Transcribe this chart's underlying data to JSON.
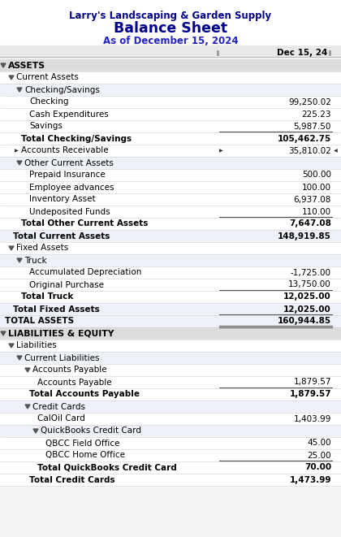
{
  "title1": "Larry's Landscaping & Garden Supply",
  "title2": "Balance Sheet",
  "title3": "As of December 15, 2024",
  "col_header": "Dec 15, 24",
  "fig_bg": "#f4f4f4",
  "white_bg": "#ffffff",
  "section_bg": "#dcdcdc",
  "alt_bg": "#eef2f8",
  "rows": [
    {
      "label": "ASSETS",
      "value": null,
      "indent": 0,
      "bold": true,
      "section_header": true,
      "arrow": "down",
      "bg": "section"
    },
    {
      "label": "Current Assets",
      "value": null,
      "indent": 1,
      "bold": false,
      "section_header": false,
      "arrow": "down",
      "bg": "white"
    },
    {
      "label": "Checking/Savings",
      "value": null,
      "indent": 2,
      "bold": false,
      "section_header": false,
      "arrow": "down",
      "bg": "alt"
    },
    {
      "label": "Checking",
      "value": "99,250.02",
      "indent": 3,
      "bold": false,
      "bg": "white"
    },
    {
      "label": "Cash Expenditures",
      "value": "225.23",
      "indent": 3,
      "bold": false,
      "bg": "white"
    },
    {
      "label": "Savings",
      "value": "5,987.50",
      "indent": 3,
      "bold": false,
      "underline_val": true,
      "bg": "white"
    },
    {
      "label": "Total Checking/Savings",
      "value": "105,462.75",
      "indent": 2,
      "bold": true,
      "bg": "white"
    },
    {
      "label": "Accounts Receivable",
      "value": "35,810.02",
      "indent": 2,
      "bold": false,
      "arrow_label": true,
      "arrow_val": true,
      "bg": "white"
    },
    {
      "label": "Other Current Assets",
      "value": null,
      "indent": 2,
      "bold": false,
      "arrow": "down",
      "bg": "alt"
    },
    {
      "label": "Prepaid Insurance",
      "value": "500.00",
      "indent": 3,
      "bold": false,
      "bg": "white"
    },
    {
      "label": "Employee advances",
      "value": "100.00",
      "indent": 3,
      "bold": false,
      "bg": "white"
    },
    {
      "label": "Inventory Asset",
      "value": "6,937.08",
      "indent": 3,
      "bold": false,
      "bg": "white"
    },
    {
      "label": "Undeposited Funds",
      "value": "110.00",
      "indent": 3,
      "bold": false,
      "underline_val": true,
      "bg": "white"
    },
    {
      "label": "Total Other Current Assets",
      "value": "7,647.08",
      "indent": 2,
      "bold": true,
      "bg": "white"
    },
    {
      "label": "Total Current Assets",
      "value": "148,919.85",
      "indent": 1,
      "bold": true,
      "bg": "alt"
    },
    {
      "label": "Fixed Assets",
      "value": null,
      "indent": 1,
      "bold": false,
      "arrow": "down",
      "bg": "white"
    },
    {
      "label": "Truck",
      "value": null,
      "indent": 2,
      "bold": false,
      "arrow": "down",
      "bg": "alt"
    },
    {
      "label": "Accumulated Depreciation",
      "value": "-1,725.00",
      "indent": 3,
      "bold": false,
      "bg": "white"
    },
    {
      "label": "Original Purchase",
      "value": "13,750.00",
      "indent": 3,
      "bold": false,
      "underline_val": true,
      "bg": "white"
    },
    {
      "label": "Total Truck",
      "value": "12,025.00",
      "indent": 2,
      "bold": true,
      "bg": "white"
    },
    {
      "label": "Total Fixed Assets",
      "value": "12,025.00",
      "indent": 1,
      "bold": true,
      "underline_val": true,
      "bg": "alt"
    },
    {
      "label": "TOTAL ASSETS",
      "value": "160,944.85",
      "indent": 0,
      "bold": true,
      "double_underline": true,
      "bg": "alt"
    },
    {
      "label": "LIABILITIES & EQUITY",
      "value": null,
      "indent": 0,
      "bold": true,
      "section_header": true,
      "arrow": "down",
      "bg": "section"
    },
    {
      "label": "Liabilities",
      "value": null,
      "indent": 1,
      "bold": false,
      "arrow": "down",
      "bg": "white"
    },
    {
      "label": "Current Liabilities",
      "value": null,
      "indent": 2,
      "bold": false,
      "arrow": "down",
      "bg": "alt"
    },
    {
      "label": "Accounts Payable",
      "value": null,
      "indent": 3,
      "bold": false,
      "arrow": "down",
      "bg": "white"
    },
    {
      "label": "Accounts Payable",
      "value": "1,879.57",
      "indent": 4,
      "bold": false,
      "underline_val": true,
      "bg": "white"
    },
    {
      "label": "Total Accounts Payable",
      "value": "1,879.57",
      "indent": 3,
      "bold": true,
      "bg": "white"
    },
    {
      "label": "Credit Cards",
      "value": null,
      "indent": 3,
      "bold": false,
      "arrow": "down",
      "bg": "alt"
    },
    {
      "label": "CalOil Card",
      "value": "1,403.99",
      "indent": 4,
      "bold": false,
      "bg": "white"
    },
    {
      "label": "QuickBooks Credit Card",
      "value": null,
      "indent": 4,
      "bold": false,
      "arrow": "down",
      "bg": "alt"
    },
    {
      "label": "QBCC Field Office",
      "value": "45.00",
      "indent": 5,
      "bold": false,
      "bg": "white"
    },
    {
      "label": "QBCC Home Office",
      "value": "25.00",
      "indent": 5,
      "bold": false,
      "underline_val": true,
      "bg": "white"
    },
    {
      "label": "Total QuickBooks Credit Card",
      "value": "70.00",
      "indent": 4,
      "bold": true,
      "bg": "white"
    },
    {
      "label": "Total Credit Cards",
      "value": "1,473.99",
      "indent": 3,
      "bold": true,
      "bg": "white"
    }
  ]
}
